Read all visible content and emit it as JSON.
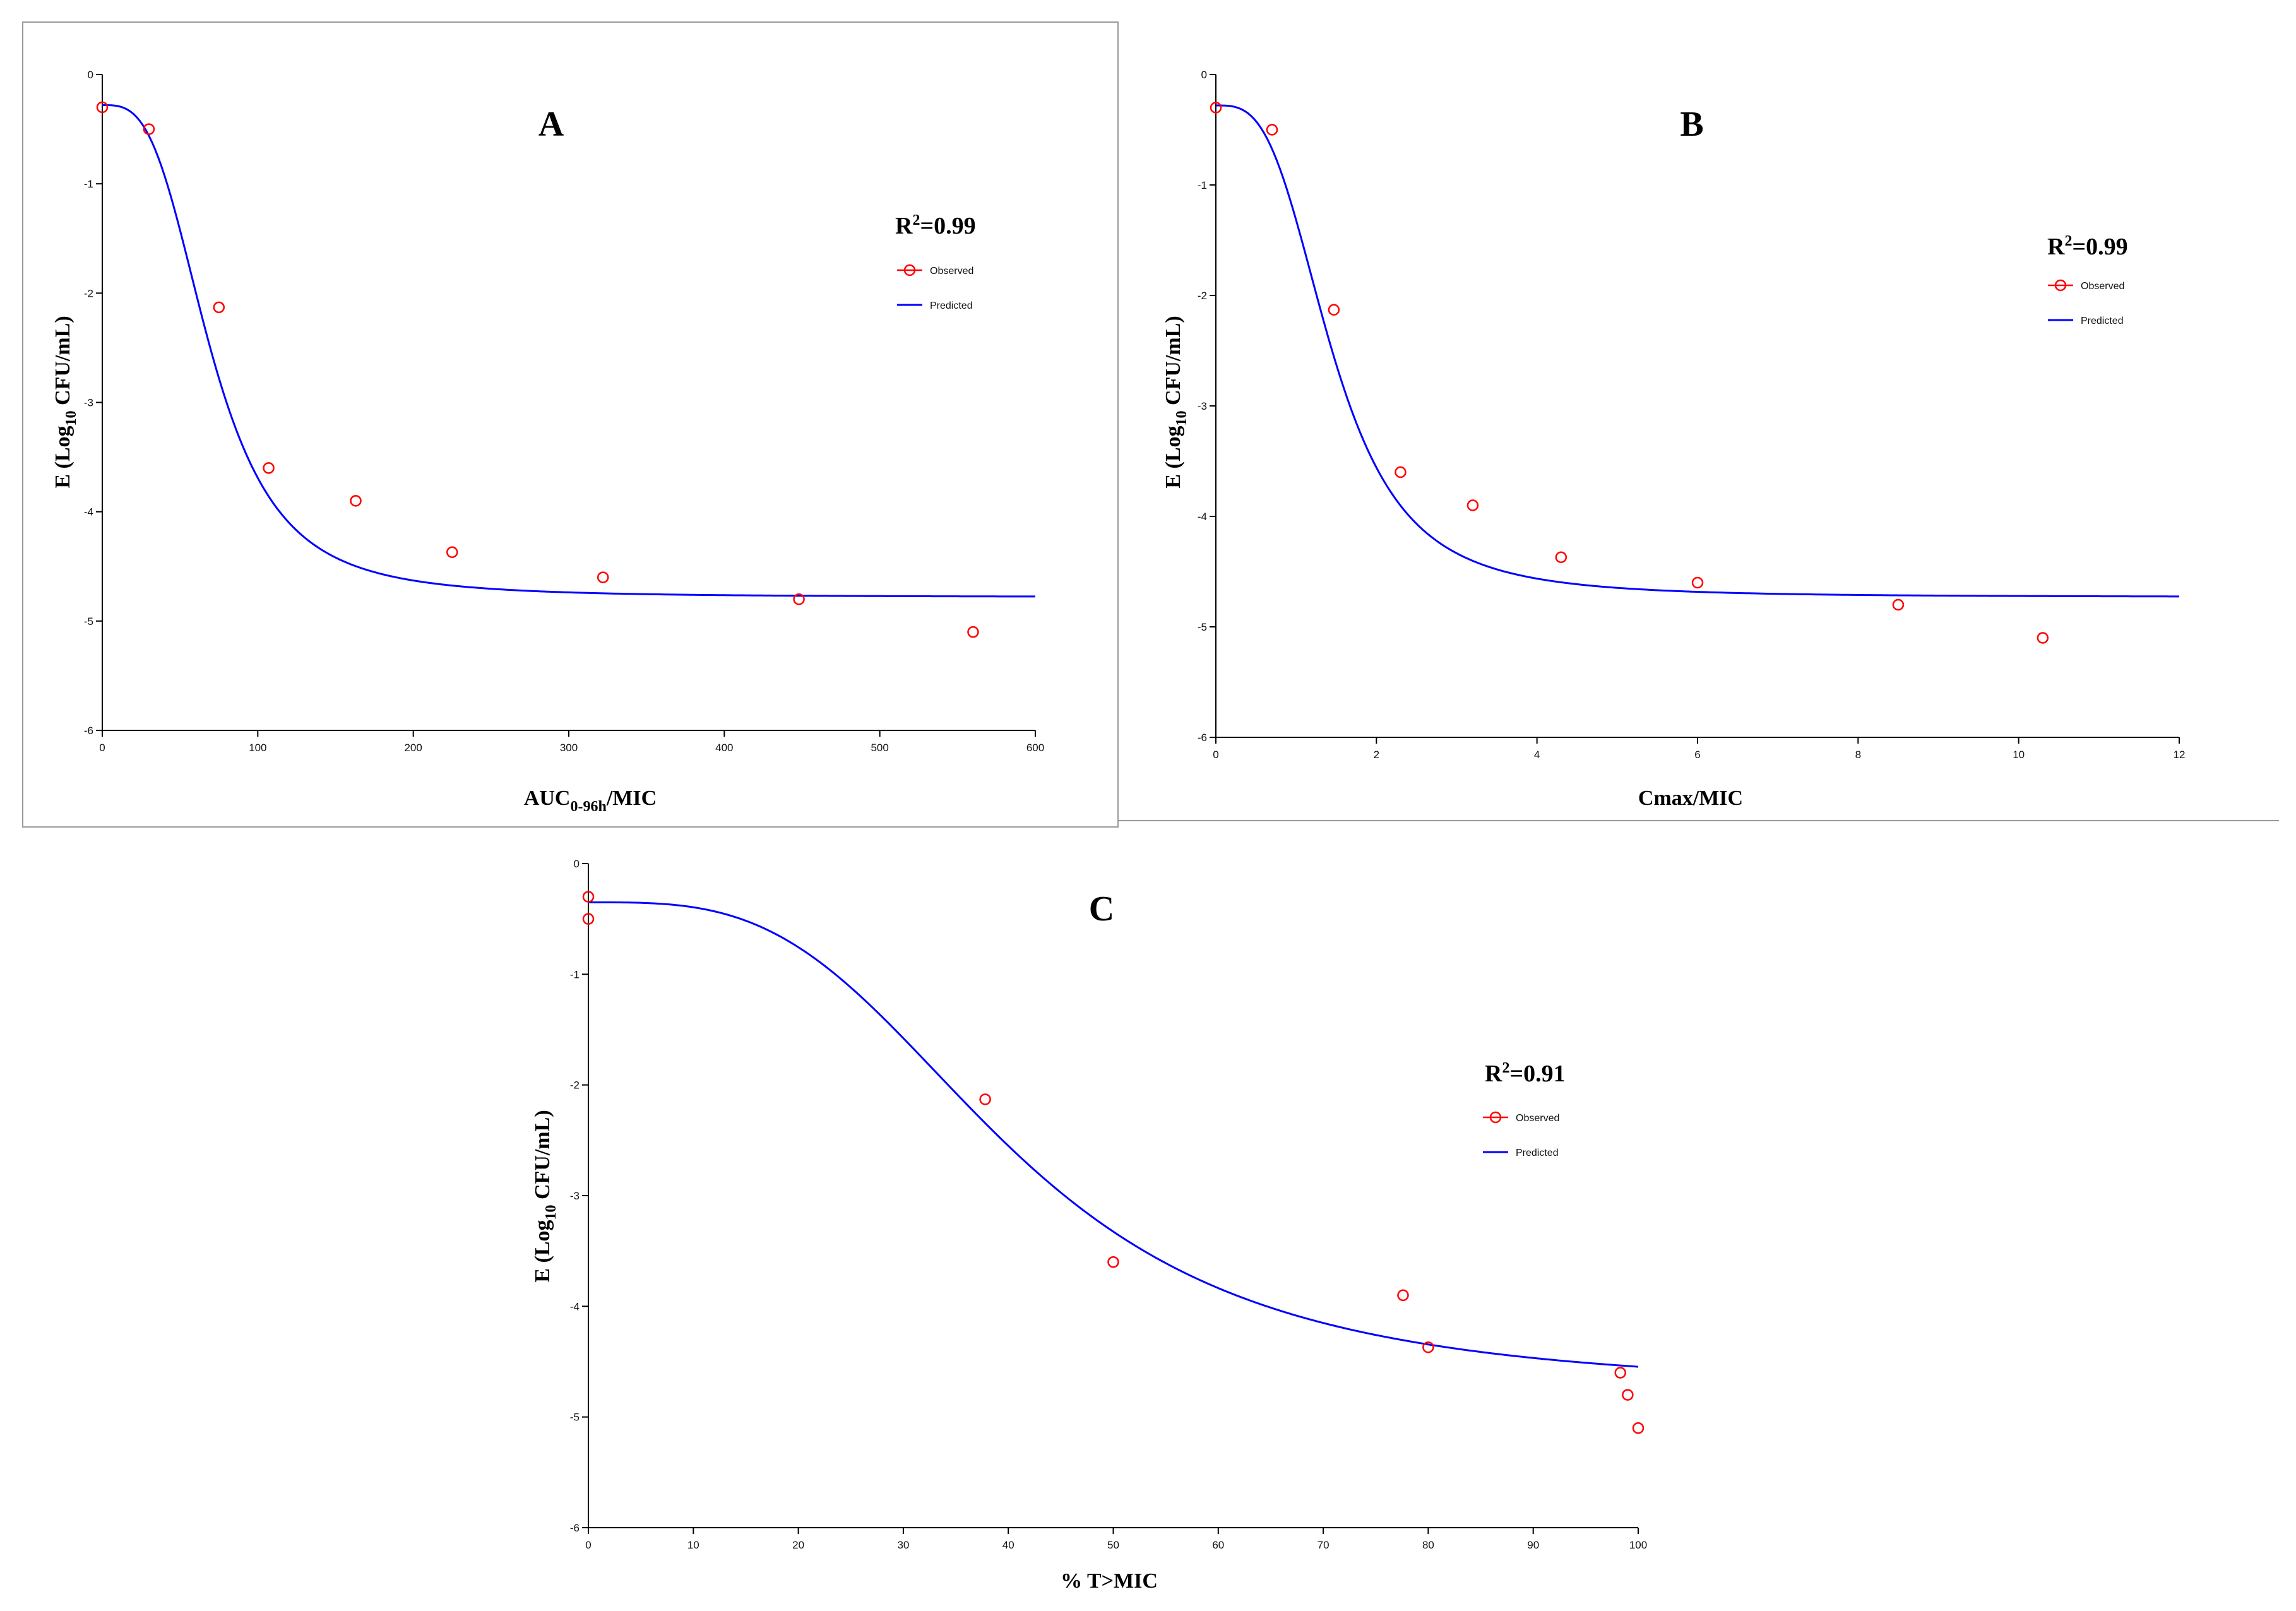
{
  "chart_data": [
    {
      "type": "line",
      "panel": "A",
      "r2_label": "R",
      "r2_sup": "2",
      "r2_value": "=0.99",
      "xlabel_main": "AUC",
      "xlabel_sub": "0-96h",
      "xlabel_tail": "/MIC",
      "ylabel": "E (Log",
      "ylabel_sub": "10",
      "ylabel_tail": " CFU/mL)",
      "xlim": [
        0,
        600
      ],
      "ylim": [
        -6,
        0
      ],
      "xticks": [
        "0",
        "100",
        "200",
        "300",
        "400",
        "500",
        "600"
      ],
      "yticks": [
        "0",
        "-1",
        "-2",
        "-3",
        "-4",
        "-5",
        "-6"
      ],
      "legend": [
        "Observed",
        "Predicted"
      ],
      "legend_position": "upper-right",
      "series": [
        {
          "name": "Observed",
          "kind": "scatter",
          "color": "#ff0000",
          "x": [
            0,
            30,
            75,
            107,
            163,
            225,
            322,
            448,
            560
          ],
          "y": [
            -0.3,
            -0.5,
            -2.13,
            -3.6,
            -3.9,
            -4.37,
            -4.6,
            -4.8,
            -5.1
          ]
        },
        {
          "name": "Predicted",
          "kind": "line",
          "color": "#0000ff",
          "model": {
            "e0": -0.28,
            "emax": -4.5,
            "ec50": 70,
            "hill": 3.2,
            "xmax": 600
          }
        }
      ]
    },
    {
      "type": "line",
      "panel": "B",
      "r2_label": "R",
      "r2_sup": "2",
      "r2_value": "=0.99",
      "xlabel_main": "Cmax/MIC",
      "xlabel_sub": "",
      "xlabel_tail": "",
      "ylabel": "E (Log",
      "ylabel_sub": "10",
      "ylabel_tail": " CFU/mL)",
      "xlim": [
        0,
        12
      ],
      "ylim": [
        -6,
        0
      ],
      "xticks": [
        "0",
        "2",
        "4",
        "6",
        "8",
        "10",
        "12"
      ],
      "yticks": [
        "0",
        "-1",
        "-2",
        "-3",
        "-4",
        "-5",
        "-6"
      ],
      "legend": [
        "Observed",
        "Predicted"
      ],
      "legend_position": "upper-right",
      "series": [
        {
          "name": "Observed",
          "kind": "scatter",
          "color": "#ff0000",
          "x": [
            0,
            0.7,
            1.47,
            2.3,
            3.2,
            4.3,
            6.0,
            8.5,
            10.3
          ],
          "y": [
            -0.3,
            -0.5,
            -2.13,
            -3.6,
            -3.9,
            -4.37,
            -4.6,
            -4.8,
            -5.1
          ]
        },
        {
          "name": "Predicted",
          "kind": "line",
          "color": "#0000ff",
          "model": {
            "e0": -0.28,
            "emax": -4.45,
            "ec50": 1.45,
            "hill": 3.2,
            "xmax": 12
          }
        }
      ]
    },
    {
      "type": "line",
      "panel": "C",
      "r2_label": "R",
      "r2_sup": "2",
      "r2_value": "=0.91",
      "xlabel_main": "% T>MIC",
      "xlabel_sub": "",
      "xlabel_tail": "",
      "ylabel": "E (Log",
      "ylabel_sub": "10",
      "ylabel_tail": " CFU/mL)",
      "xlim": [
        0,
        100
      ],
      "ylim": [
        -6,
        0
      ],
      "xticks": [
        "0",
        "10",
        "20",
        "30",
        "40",
        "50",
        "60",
        "70",
        "80",
        "90",
        "100"
      ],
      "yticks": [
        "0",
        "-1",
        "-2",
        "-3",
        "-4",
        "-5",
        "-6"
      ],
      "legend": [
        "Observed",
        "Predicted"
      ],
      "legend_position": "upper-right",
      "series": [
        {
          "name": "Observed",
          "kind": "scatter",
          "color": "#ff0000",
          "x": [
            0,
            0,
            37.8,
            50,
            77.6,
            80,
            98.3,
            99,
            100
          ],
          "y": [
            -0.3,
            -0.5,
            -2.13,
            -3.6,
            -3.9,
            -4.37,
            -4.6,
            -4.8,
            -5.1
          ]
        },
        {
          "name": "Predicted",
          "kind": "line",
          "color": "#0000ff",
          "model": {
            "e0": -0.35,
            "emax": -4.4,
            "ec50": 40,
            "hill": 3.3,
            "xmax": 100
          }
        }
      ]
    }
  ]
}
